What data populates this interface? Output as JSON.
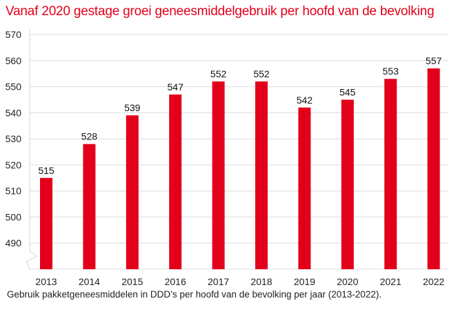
{
  "chart_data": {
    "type": "bar",
    "title": "Vanaf 2020 gestage groei geneesmiddelgebruik per hoofd van de bevolking",
    "caption": "Gebruik pakketgeneesmiddelen in DDD’s per hoofd van de bevolking per jaar (2013-2022).",
    "categories": [
      "2013",
      "2014",
      "2015",
      "2016",
      "2017",
      "2018",
      "2019",
      "2020",
      "2021",
      "2022"
    ],
    "values": [
      515,
      528,
      539,
      547,
      552,
      552,
      542,
      545,
      553,
      557
    ],
    "xlabel": "",
    "ylabel": "",
    "ylim": [
      480,
      570
    ],
    "yticks": [
      490,
      500,
      510,
      520,
      530,
      540,
      550,
      560,
      570
    ],
    "axis_break": true,
    "grid": true,
    "bar_color": "#e2001a"
  }
}
